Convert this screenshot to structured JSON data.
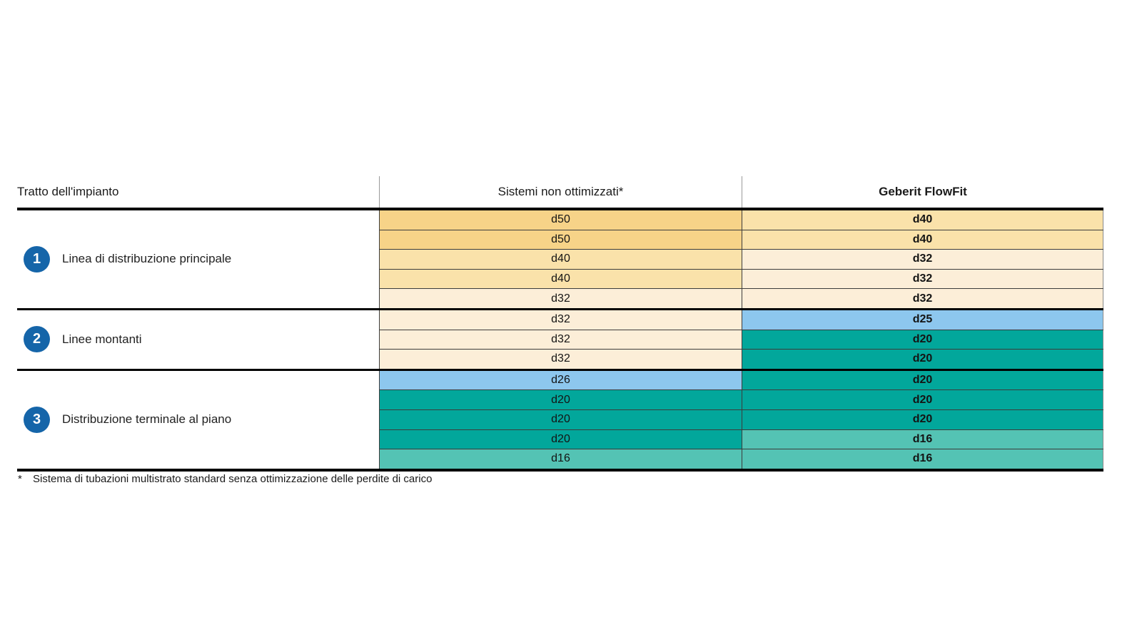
{
  "table": {
    "header": {
      "col1": "Tratto dell'impianto",
      "col2": "Sistemi non ottimizzati*",
      "col3": "Geberit FlowFit"
    },
    "sections": [
      {
        "number": "1",
        "label": "Linea di distribuzione principale",
        "rows": [
          [
            "d50",
            "d40"
          ],
          [
            "d50",
            "d40"
          ],
          [
            "d40",
            "d32"
          ],
          [
            "d40",
            "d32"
          ],
          [
            "d32",
            "d32"
          ]
        ]
      },
      {
        "number": "2",
        "label": "Linee montanti",
        "rows": [
          [
            "d32",
            "d25"
          ],
          [
            "d32",
            "d20"
          ],
          [
            "d32",
            "d20"
          ]
        ]
      },
      {
        "number": "3",
        "label": "Distribuzione terminale al piano",
        "rows": [
          [
            "d26",
            "d20"
          ],
          [
            "d20",
            "d20"
          ],
          [
            "d20",
            "d20"
          ],
          [
            "d20",
            "d16"
          ],
          [
            "d16",
            "d16"
          ]
        ]
      }
    ],
    "footnote": {
      "marker": "*",
      "text": "Sistema di tubazioni multistrato standard senza ottimizzazione delle perdite di carico"
    }
  },
  "chart_data": {
    "type": "table",
    "columns": [
      "Tratto dell'impianto",
      "Sistemi non ottimizzati*",
      "Geberit FlowFit"
    ],
    "rows": [
      [
        "Linea di distribuzione principale",
        "d50",
        "d40"
      ],
      [
        "Linea di distribuzione principale",
        "d50",
        "d40"
      ],
      [
        "Linea di distribuzione principale",
        "d40",
        "d32"
      ],
      [
        "Linea di distribuzione principale",
        "d40",
        "d32"
      ],
      [
        "Linea di distribuzione principale",
        "d32",
        "d32"
      ],
      [
        "Linee montanti",
        "d32",
        "d25"
      ],
      [
        "Linee montanti",
        "d32",
        "d20"
      ],
      [
        "Linee montanti",
        "d32",
        "d20"
      ],
      [
        "Distribuzione terminale al piano",
        "d26",
        "d20"
      ],
      [
        "Distribuzione terminale al piano",
        "d20",
        "d20"
      ],
      [
        "Distribuzione terminale al piano",
        "d20",
        "d20"
      ],
      [
        "Distribuzione terminale al piano",
        "d20",
        "d16"
      ],
      [
        "Distribuzione terminale al piano",
        "d16",
        "d16"
      ]
    ]
  },
  "colors": {
    "badge_blue": "#1565A9",
    "cell_colors": {
      "d50": "#F7D388",
      "d40": "#FAE2AA",
      "d32": "#FCEED8",
      "d26": "#8DC7EE",
      "d25": "#8DC7EE",
      "d20": "#02A79B",
      "d16": "#54C3B4"
    }
  }
}
